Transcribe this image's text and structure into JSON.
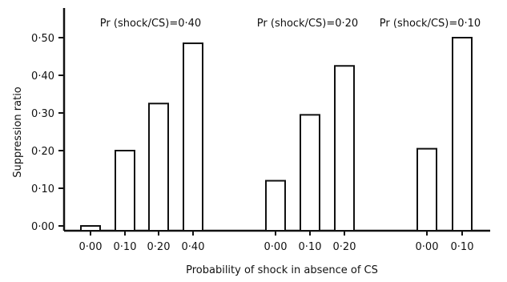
{
  "chart_data": {
    "type": "bar",
    "title": "",
    "xlabel": "Probability of shock in absence of CS",
    "ylabel": "Suppression ratio",
    "ylim": [
      0,
      0.5
    ],
    "y_ticks": [
      "0·00",
      "0·10",
      "0·20",
      "0·30",
      "0·40",
      "0·50"
    ],
    "grid": false,
    "legend": "none",
    "groups": [
      {
        "label": "Pr (shock/CS)=0·40",
        "categories": [
          "0·00",
          "0·10",
          "0·20",
          "0·40"
        ],
        "values": [
          0.0,
          0.2,
          0.325,
          0.485
        ]
      },
      {
        "label": "Pr (shock/CS)=0·20",
        "categories": [
          "0·00",
          "0·10",
          "0·20"
        ],
        "values": [
          0.12,
          0.295,
          0.425
        ]
      },
      {
        "label": "Pr (shock/CS)=0·10",
        "categories": [
          "0·00",
          "0·10"
        ],
        "values": [
          0.205,
          0.5
        ]
      }
    ]
  }
}
